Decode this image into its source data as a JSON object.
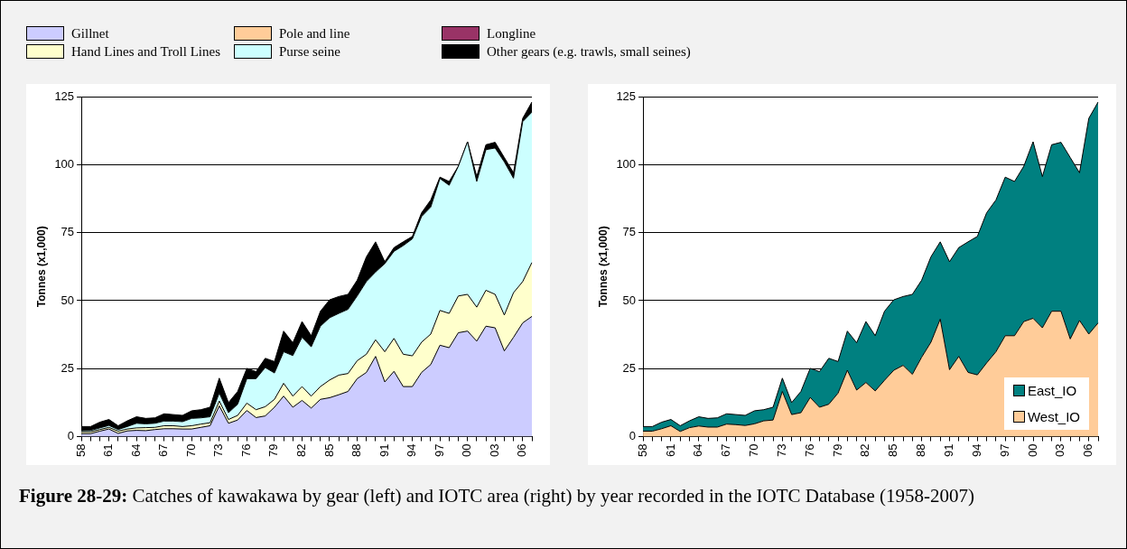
{
  "chart_data": [
    {
      "type": "area",
      "stacked": true,
      "ylabel": "Tonnes (x1,000)",
      "legend": "top",
      "grid": "y",
      "ylim": [
        0,
        125
      ],
      "yticks": [
        0,
        25,
        50,
        75,
        100,
        125
      ],
      "categories": [
        "58",
        null,
        null,
        "61",
        null,
        null,
        "64",
        null,
        null,
        "67",
        null,
        null,
        "70",
        null,
        null,
        "73",
        null,
        null,
        "76",
        null,
        null,
        "79",
        null,
        null,
        "82",
        null,
        null,
        "85",
        null,
        null,
        "88",
        null,
        null,
        "91",
        null,
        null,
        "94",
        null,
        null,
        "97",
        null,
        null,
        "00",
        null,
        null,
        "03",
        null,
        null,
        "06",
        null
      ],
      "series": [
        {
          "name": "Gillnet",
          "color": "#ccccff",
          "values": [
            1.1,
            1.1,
            2,
            2.8,
            1.2,
            2.1,
            2.3,
            2.2,
            2.6,
            2.9,
            2.9,
            2.8,
            2.8,
            3.4,
            4,
            11.3,
            4.9,
            6.1,
            9.6,
            7,
            7.6,
            10.8,
            14.9,
            10.8,
            13.3,
            10.5,
            13.7,
            14.3,
            15.4,
            16.6,
            21.3,
            23.6,
            29.5,
            20.1,
            24,
            18.4,
            18.4,
            23.6,
            26.5,
            33.6,
            32.7,
            38.2,
            38.8,
            35.1,
            40.6,
            40,
            31.5,
            36.5,
            41.8,
            44.2
          ]
        },
        {
          "name": "Hand Lines and Troll Lines",
          "color": "#ffffcc",
          "values": [
            0.7,
            0.7,
            0.6,
            0.6,
            0.8,
            0.7,
            0.9,
            1.1,
            0.8,
            1.1,
            1.1,
            0.9,
            1.2,
            1.2,
            1.1,
            1.8,
            1.4,
            1.7,
            2.7,
            2.9,
            3.4,
            2.9,
            4.7,
            4.1,
            5.1,
            4.4,
            4.7,
            6.5,
            7.2,
            6.6,
            6.6,
            6.7,
            6.1,
            11.1,
            12.1,
            11.9,
            11.3,
            11.1,
            11.2,
            12.8,
            12.6,
            13.5,
            13.5,
            12.5,
            13.2,
            12.3,
            13.2,
            16.4,
            15.2,
            19.8
          ]
        },
        {
          "name": "Pole and line",
          "color": "#ffcc99",
          "values": [
            null,
            null,
            null,
            null,
            null,
            null,
            null,
            null,
            null,
            null,
            null,
            null,
            null,
            null,
            null,
            null,
            null,
            null,
            null,
            null,
            null,
            null,
            null,
            null,
            null,
            null,
            null,
            null,
            null,
            null,
            null,
            null,
            null,
            null,
            null,
            null,
            null,
            null,
            null,
            null,
            null,
            null,
            null,
            null,
            null,
            null,
            null,
            null,
            null,
            null
          ]
        },
        {
          "name": "Purse seine",
          "color": "#ccffff",
          "values": [
            0.4,
            0.5,
            0.6,
            0.7,
            0.6,
            0.9,
            1.7,
            1.4,
            1.5,
            1.7,
            1.7,
            1.8,
            2.7,
            2.3,
            2.2,
            2.9,
            2.5,
            4.1,
            9,
            11.4,
            14.4,
            9.7,
            11.6,
            14.9,
            18.1,
            18.1,
            22.2,
            22.9,
            22.7,
            23.6,
            23.8,
            26.7,
            24.9,
            32.4,
            32,
            39.9,
            43,
            46.2,
            46.7,
            48.5,
            47.1,
            47.7,
            56.1,
            46.2,
            51.7,
            53.8,
            56.3,
            42.1,
            58.8,
            55.3
          ]
        },
        {
          "name": "Longline",
          "color": "#993366",
          "values": [
            null,
            null,
            null,
            null,
            null,
            null,
            null,
            null,
            null,
            null,
            null,
            null,
            null,
            null,
            null,
            null,
            null,
            null,
            null,
            null,
            null,
            null,
            null,
            null,
            null,
            null,
            null,
            null,
            null,
            null,
            null,
            null,
            null,
            null,
            null,
            null,
            null,
            null,
            null,
            null,
            null,
            null,
            null,
            null,
            null,
            null,
            null,
            null,
            null,
            null
          ]
        },
        {
          "name": "Other gears (e.g. trawls, small seines)",
          "color": "#000000",
          "values": [
            1.5,
            1.4,
            2.1,
            2.2,
            1.4,
            2.1,
            2.4,
            2,
            2,
            2.7,
            2.4,
            2.3,
            2.8,
            3,
            3.5,
            5.5,
            3.7,
            4.7,
            3.8,
            2.6,
            3.4,
            4.2,
            7.6,
            4.7,
            5.8,
            4.1,
            5.5,
            6.6,
            6.2,
            5.5,
            5.8,
            9.1,
            11.1,
            0.7,
            1.4,
            1.4,
            0.9,
            1.4,
            2.6,
            0.5,
            1.4,
            0,
            0,
            1.8,
            1.8,
            2.1,
            1.6,
            2,
            1.2,
            3.7
          ]
        }
      ],
      "annotations": [
        "Figure 28-29: Catches of kawakawa by gear (left) and IOTC area (right) by year recorded in the IOTC Database (1958-2007)"
      ]
    },
    {
      "type": "area",
      "stacked": true,
      "ylabel": "Tonnes (x1,000)",
      "legend": "bottom right",
      "grid": "y",
      "ylim": [
        0,
        125
      ],
      "yticks": [
        0,
        25,
        50,
        75,
        100,
        125
      ],
      "categories": [
        "58",
        null,
        null,
        "61",
        null,
        null,
        "64",
        null,
        null,
        "67",
        null,
        null,
        "70",
        null,
        null,
        "73",
        null,
        null,
        "76",
        null,
        null,
        "79",
        null,
        null,
        "82",
        null,
        null,
        "85",
        null,
        null,
        "88",
        null,
        null,
        "91",
        null,
        null,
        "94",
        null,
        null,
        "97",
        null,
        null,
        "00",
        null,
        null,
        "03",
        null,
        null,
        "06",
        null
      ],
      "series": [
        {
          "name": "West_IO",
          "color": "#ffcc99",
          "values": [
            2,
            2,
            2.9,
            4,
            1.9,
            3.3,
            3.9,
            3.5,
            3.5,
            4.6,
            4.4,
            4.1,
            4.7,
            5.8,
            6.1,
            16.6,
            8.1,
            8.8,
            14.4,
            10.8,
            11.9,
            16,
            24.4,
            17.1,
            19.9,
            16.8,
            20.7,
            24.4,
            26.2,
            22.9,
            29.2,
            34.7,
            43.2,
            24.6,
            29.5,
            23.6,
            22.7,
            27.1,
            31.2,
            37.1,
            37.1,
            42.3,
            43.5,
            40,
            46.1,
            46.1,
            35.9,
            42.7,
            37.7,
            41.8
          ]
        },
        {
          "name": "East_IO",
          "color": "#008080",
          "values": [
            1.7,
            1.7,
            2.4,
            2.3,
            2.1,
            2.5,
            3.4,
            3.2,
            3.4,
            3.8,
            3.7,
            3.7,
            4.8,
            4.1,
            4.7,
            4.9,
            4.4,
            7.8,
            10.7,
            13.1,
            16.9,
            11.6,
            14.4,
            17.4,
            22.4,
            20.3,
            25.4,
            25.9,
            25.3,
            29.4,
            28.3,
            31.4,
            28.4,
            39.7,
            40,
            48,
            50.9,
            55.2,
            55.8,
            58.3,
            56.7,
            57.1,
            64.9,
            55.6,
            61.2,
            62.1,
            66.7,
            54.3,
            79.3,
            81.2
          ]
        }
      ]
    }
  ]
}
